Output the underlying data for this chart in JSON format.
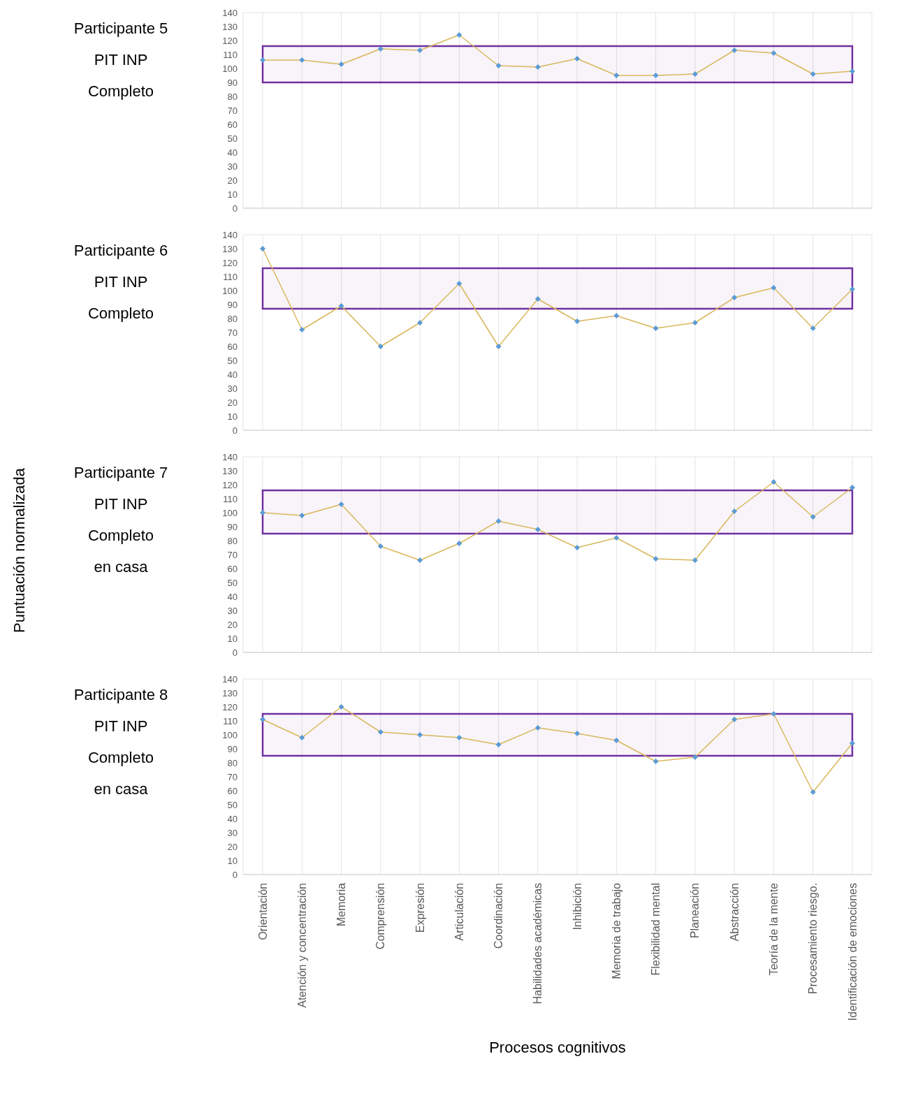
{
  "chart_data": [
    {
      "type": "line",
      "annotations": [
        "Participante 5",
        "PIT INP",
        "Completo"
      ],
      "categories": [
        null,
        null,
        null,
        null,
        null,
        null,
        null,
        null,
        null,
        null,
        null,
        null,
        null,
        null,
        null,
        null
      ],
      "series": [
        {
          "color": "#d9b75a",
          "colors": [
            "#5b9bd5",
            "#5b9bd5",
            "#5b9bd5",
            "#5b9bd5",
            "#5b9bd5",
            "#5b9bd5",
            "#5b9bd5",
            "#5b9bd5",
            "#5b9bd5",
            "#5b9bd5",
            "#5b9bd5",
            "#5b9bd5",
            "#5b9bd5",
            "#5b9bd5",
            "#5b9bd5",
            "#5b9bd5"
          ],
          "values": [
            106,
            106,
            103,
            114,
            113,
            124,
            102,
            101,
            107,
            95,
            95,
            96,
            113,
            111,
            96,
            98
          ]
        }
      ],
      "ylim": [
        0,
        140
      ],
      "yticks": [
        0,
        10,
        20,
        30,
        40,
        50,
        60,
        70,
        80,
        90,
        100,
        110,
        120,
        130,
        140
      ],
      "grid": true,
      "marker": "diamond",
      "tick_labels": "y",
      "bands": [
        {
          "axis": "y",
          "from": 90,
          "to": 116,
          "color": "#7030a0"
        }
      ]
    },
    {
      "type": "line",
      "annotations": [
        "Participante 6",
        "PIT INP",
        "Completo"
      ],
      "categories": [
        null,
        null,
        null,
        null,
        null,
        null,
        null,
        null,
        null,
        null,
        null,
        null,
        null,
        null,
        null,
        null
      ],
      "series": [
        {
          "color": "#d9b75a",
          "colors": [
            "#5b9bd5",
            "#5b9bd5",
            "#5b9bd5",
            "#5b9bd5",
            "#5b9bd5",
            "#5b9bd5",
            "#5b9bd5",
            "#5b9bd5",
            "#5b9bd5",
            "#5b9bd5",
            "#5b9bd5",
            "#5b9bd5",
            "#5b9bd5",
            "#5b9bd5",
            "#5b9bd5",
            "#5b9bd5"
          ],
          "values": [
            130,
            72,
            89,
            60,
            77,
            105,
            60,
            94,
            78,
            82,
            73,
            77,
            95,
            102,
            73,
            101
          ]
        }
      ],
      "ylim": [
        0,
        140
      ],
      "yticks": [
        0,
        10,
        20,
        30,
        40,
        50,
        60,
        70,
        80,
        90,
        100,
        110,
        120,
        130,
        140
      ],
      "grid": true,
      "marker": "diamond",
      "tick_labels": "y",
      "bands": [
        {
          "axis": "y",
          "from": 87,
          "to": 116,
          "color": "#7030a0"
        }
      ]
    },
    {
      "type": "line",
      "annotations": [
        "Participante 7",
        "PIT INP",
        "Completo",
        "en casa"
      ],
      "ylabel": "Puntuación normalizada",
      "categories": [
        null,
        null,
        null,
        null,
        null,
        null,
        null,
        null,
        null,
        null,
        null,
        null,
        null,
        null,
        null,
        null
      ],
      "series": [
        {
          "color": "#d9b75a",
          "colors": [
            "#5b9bd5",
            "#5b9bd5",
            "#5b9bd5",
            "#5b9bd5",
            "#5b9bd5",
            "#5b9bd5",
            "#5b9bd5",
            "#5b9bd5",
            "#5b9bd5",
            "#5b9bd5",
            "#5b9bd5",
            "#5b9bd5",
            "#5b9bd5",
            "#5b9bd5",
            "#5b9bd5",
            "#5b9bd5"
          ],
          "values": [
            100,
            98,
            106,
            76,
            66,
            78,
            94,
            88,
            75,
            82,
            67,
            66,
            101,
            122,
            97,
            118
          ]
        }
      ],
      "ylim": [
        0,
        140
      ],
      "yticks": [
        0,
        10,
        20,
        30,
        40,
        50,
        60,
        70,
        80,
        90,
        100,
        110,
        120,
        130,
        140
      ],
      "grid": true,
      "marker": "diamond",
      "tick_labels": "y",
      "bands": [
        {
          "axis": "y",
          "from": 85,
          "to": 116,
          "color": "#7030a0"
        }
      ]
    },
    {
      "type": "line",
      "annotations": [
        "Participante 8",
        "PIT INP",
        "Completo",
        "en casa"
      ],
      "xlabel": "Procesos cognitivos",
      "categories": [
        "Orientación",
        "Atención y concentración",
        "Memoria",
        "Comprensión",
        "Expresión",
        "Articulación",
        "Coordinación",
        "Habilidades académicas",
        "Inhibición",
        "Memoria de trabajo",
        "Flexibilidad mental",
        "Planeación",
        "Abstracción",
        "Teoría de la mente",
        "Procesamiento riesgo.",
        "Identificación de emociones"
      ],
      "series": [
        {
          "color": "#d9b75a",
          "colors": [
            "#5b9bd5",
            "#5b9bd5",
            "#5b9bd5",
            "#5b9bd5",
            "#5b9bd5",
            "#5b9bd5",
            "#5b9bd5",
            "#5b9bd5",
            "#5b9bd5",
            "#5b9bd5",
            "#5b9bd5",
            "#5b9bd5",
            "#5b9bd5",
            "#5b9bd5",
            "#5b9bd5",
            "#5b9bd5"
          ],
          "values": [
            111,
            98,
            120,
            102,
            100,
            98,
            93,
            105,
            101,
            96,
            81,
            84,
            111,
            115,
            59,
            94
          ]
        }
      ],
      "ylim": [
        0,
        140
      ],
      "yticks": [
        0,
        10,
        20,
        30,
        40,
        50,
        60,
        70,
        80,
        90,
        100,
        110,
        120,
        130,
        140
      ],
      "grid": true,
      "marker": "diamond",
      "bands": [
        {
          "axis": "y",
          "from": 85,
          "to": 115,
          "color": "#7030a0"
        }
      ]
    }
  ]
}
